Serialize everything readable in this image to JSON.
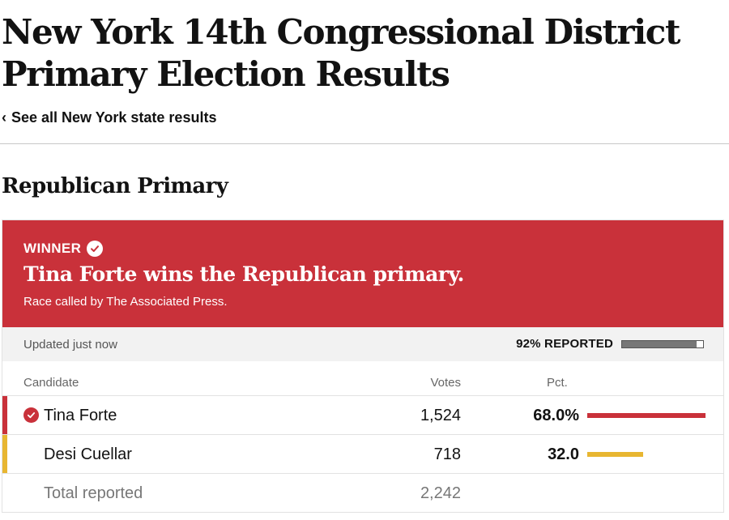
{
  "page": {
    "title_line1": "New York 14th Congressional District",
    "title_line2": "Primary Election Results",
    "back_link_chevron": "‹",
    "back_link_label": "See all New York state results"
  },
  "race": {
    "section_title": "Republican Primary",
    "winner_label": "WINNER",
    "headline": "Tina Forte wins the Republican primary.",
    "called_by": "Race called by The Associated Press.",
    "updated": "Updated just now",
    "reported_label": "92% REPORTED",
    "reported_fraction": 0.92,
    "colors": {
      "banner": "#c9313a",
      "winner": "#c9313a",
      "runner_up": "#e8b631",
      "reported_fill": "#777777"
    }
  },
  "table": {
    "headers": {
      "candidate": "Candidate",
      "votes": "Votes",
      "pct": "Pct."
    },
    "rows": [
      {
        "name": "Tina Forte",
        "votes": "1,524",
        "pct": "68.0%",
        "pct_value": 68.0,
        "winner": true,
        "color": "#c9313a"
      },
      {
        "name": "Desi Cuellar",
        "votes": "718",
        "pct": "32.0",
        "pct_value": 32.0,
        "winner": false,
        "color": "#e8b631"
      }
    ],
    "total": {
      "label": "Total reported",
      "votes": "2,242"
    }
  },
  "icons": {
    "winner_check": "check-circle-icon",
    "back": "chevron-left-icon"
  }
}
